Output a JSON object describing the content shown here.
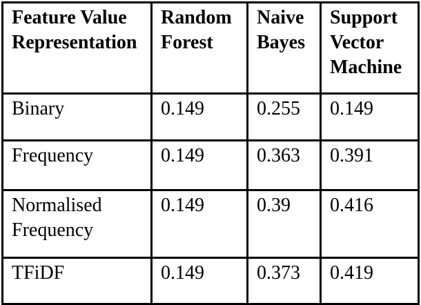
{
  "table": {
    "headers": [
      "Feature Value Representation",
      "Random Forest",
      "Naive Bayes",
      "Support Vector Machine"
    ],
    "rows": [
      {
        "feature": "Binary",
        "values": [
          "0.149",
          "0.255",
          "0.149"
        ]
      },
      {
        "feature": "Frequency",
        "values": [
          "0.149",
          "0.363",
          "0.391"
        ]
      },
      {
        "feature": "Normalised Frequency",
        "values": [
          "0.149",
          "0.39",
          "0.416"
        ]
      },
      {
        "feature": "TFiDF",
        "values": [
          "0.149",
          "0.373",
          "0.419"
        ]
      }
    ],
    "colors": {
      "text": "#000000",
      "border": "#000000",
      "background": "#ffffff"
    }
  }
}
